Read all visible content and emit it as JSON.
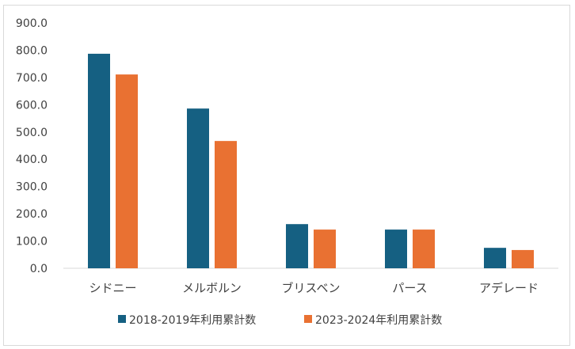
{
  "chart_data": {
    "type": "bar",
    "categories": [
      "シドニー",
      "メルボルン",
      "ブリスベン",
      "パース",
      "アデレード"
    ],
    "series": [
      {
        "name": "2018-2019年利用累計数",
        "color": "#156082",
        "values": [
          787,
          586,
          162,
          142,
          75
        ]
      },
      {
        "name": "2023-2024年利用累計数",
        "color": "#e97132",
        "values": [
          711,
          467,
          142,
          142,
          67
        ]
      }
    ],
    "ylim": [
      0,
      900
    ],
    "yticks": [
      "0.0",
      "100.0",
      "200.0",
      "300.0",
      "400.0",
      "500.0",
      "600.0",
      "700.0",
      "800.0",
      "900.0"
    ],
    "grid": false,
    "legend": "bottom"
  }
}
